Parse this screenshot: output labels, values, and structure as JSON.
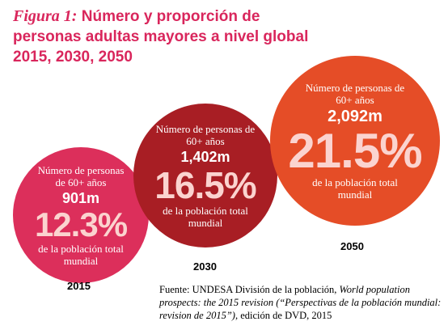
{
  "title": {
    "figure_label": "Figura 1:",
    "line1": "Número y proporción de",
    "line2": "personas adultas mayores a nivel global",
    "line3": "2015, 2030, 2050"
  },
  "colors": {
    "title": "#d9265c",
    "bubble_2015": "#dc2f5b",
    "bubble_2030": "#a81e24",
    "bubble_2050": "#e54d27"
  },
  "chart_data": {
    "type": "bubble",
    "categories": [
      "2015",
      "2030",
      "2050"
    ],
    "bubbles": [
      {
        "year": "2015",
        "label_top": "Número de personas de 60+ años",
        "count": "901m",
        "count_value_millions": 901,
        "percent": "12.3%",
        "percent_value": 12.3,
        "label_bottom": "de la población total mundial"
      },
      {
        "year": "2030",
        "label_top": "Número de personas de 60+ años",
        "count": "1,402m",
        "count_value_millions": 1402,
        "percent": "16.5%",
        "percent_value": 16.5,
        "label_bottom": "de la población total mundial"
      },
      {
        "year": "2050",
        "label_top": "Número de personas de 60+ años",
        "count": "2,092m",
        "count_value_millions": 2092,
        "percent": "21.5%",
        "percent_value": 21.5,
        "label_bottom": "de la población total mundial"
      }
    ]
  },
  "source": {
    "prefix": "Fuente: UNDESA División de la población, ",
    "italic": "World population prospects: the 2015 revision (“Perspectivas de la población mundial: revision de 2015”)",
    "suffix": ", edición de DVD, 2015"
  }
}
